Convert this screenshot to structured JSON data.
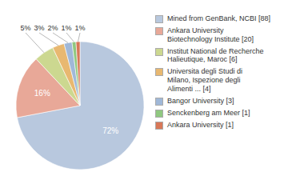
{
  "chart_data": {
    "type": "pie",
    "categories": [
      "Mined from GenBank, NCBI [88]",
      "Ankara University\nBiotechnology Institute [20]",
      "Institut National de Recherche\nHalieutique, Maroc [6]",
      "Universita degli Studi di\nMilano, Ispezione degli\nAlimenti ... [4]",
      "Bangor University [3]",
      "Senckenberg am Meer [1]",
      "Ankara University [1]"
    ],
    "values": [
      72,
      16,
      5,
      3,
      2,
      1,
      1
    ],
    "value_labels": [
      "72%",
      "16%",
      "5%",
      "3%",
      "2%",
      "1%",
      "1%"
    ],
    "colors": [
      "#b8c8de",
      "#e8a898",
      "#ccd890",
      "#e8b870",
      "#a0b8d8",
      "#90c880",
      "#d87858"
    ],
    "data_labels": true,
    "legend": "right"
  }
}
